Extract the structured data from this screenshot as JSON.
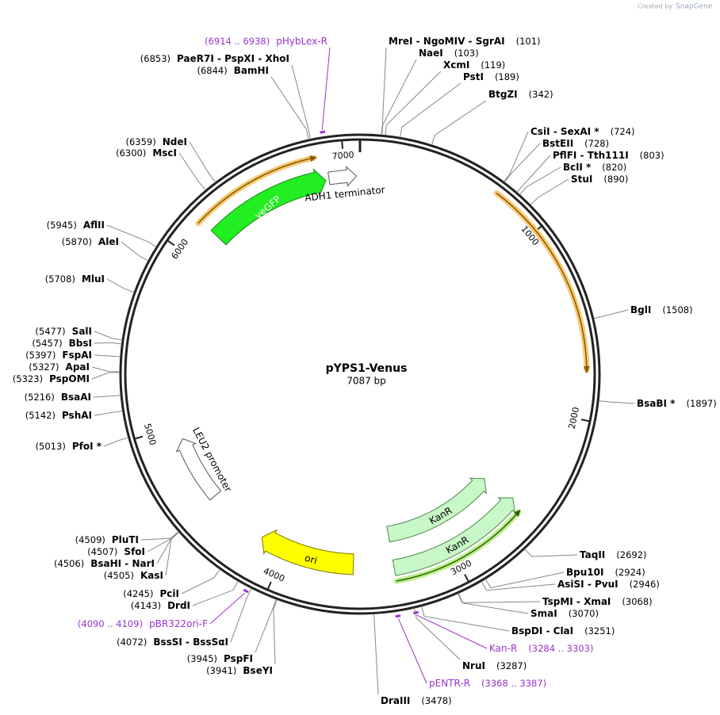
{
  "header": {
    "credit": "Created by",
    "brand": "SnapGene"
  },
  "map": {
    "name": "pYPS1-Venus",
    "length": "7087 bp"
  },
  "ticks": [
    "1000",
    "2000",
    "3000",
    "4000",
    "5000",
    "6000",
    "7000"
  ],
  "features": [
    {
      "label": "yeGFP"
    },
    {
      "label": "ADH1 terminator"
    },
    {
      "label": "LEU2 promoter"
    },
    {
      "label": "ori"
    },
    {
      "label": "KanR"
    },
    {
      "label": "KanR"
    }
  ],
  "sites": [
    {
      "name": "MreI  -  NgoMIV  -  SgrAI",
      "position": "(101)"
    },
    {
      "name": "NaeI",
      "position": "(103)"
    },
    {
      "name": "XcmI",
      "position": "(119)"
    },
    {
      "name": "PstI",
      "position": "(189)"
    },
    {
      "name": "BtgZI",
      "position": "(342)"
    },
    {
      "name": "CsiI  -  SexAI *",
      "position": "(724)"
    },
    {
      "name": "BstEII",
      "position": "(728)"
    },
    {
      "name": "PflFI  -  Tth111I",
      "position": "(803)"
    },
    {
      "name": "BclI *",
      "position": "(820)"
    },
    {
      "name": "StuI",
      "position": "(890)"
    },
    {
      "name": "BglI",
      "position": "(1508)"
    },
    {
      "name": "BsaBI *",
      "position": "(1897)"
    },
    {
      "name": "TaqII",
      "position": "(2692)"
    },
    {
      "name": "Bpu10I",
      "position": "(2924)"
    },
    {
      "name": "AsiSI  -  PvuI",
      "position": "(2946)"
    },
    {
      "name": "TspMI  -  XmaI",
      "position": "(3068)"
    },
    {
      "name": "SmaI",
      "position": "(3070)"
    },
    {
      "name": "BspDI  -  ClaI",
      "position": "(3251)"
    },
    {
      "name": "NruI",
      "position": "(3287)"
    },
    {
      "name": "DraIII",
      "position": "(3478)"
    },
    {
      "name": "PaeR7I  -  PspXI  -  XhoI",
      "position": "(6853)"
    },
    {
      "name": "BamHI",
      "position": "(6844)"
    },
    {
      "name": "NdeI",
      "position": "(6359)"
    },
    {
      "name": "MscI",
      "position": "(6300)"
    },
    {
      "name": "AflII",
      "position": "(5945)"
    },
    {
      "name": "AleI",
      "position": "(5870)"
    },
    {
      "name": "MluI",
      "position": "(5708)"
    },
    {
      "name": "SalI",
      "position": "(5477)"
    },
    {
      "name": "BbsI",
      "position": "(5457)"
    },
    {
      "name": "FspAI",
      "position": "(5397)"
    },
    {
      "name": "ApaI",
      "position": "(5327)"
    },
    {
      "name": "PspOMI",
      "position": "(5323)"
    },
    {
      "name": "BsaAI",
      "position": "(5216)"
    },
    {
      "name": "PshAI",
      "position": "(5142)"
    },
    {
      "name": "PfoI *",
      "position": "(5013)"
    },
    {
      "name": "PluTI",
      "position": "(4509)"
    },
    {
      "name": "SfoI",
      "position": "(4507)"
    },
    {
      "name": "BsaHI  -  NarI",
      "position": "(4506)"
    },
    {
      "name": "KasI",
      "position": "(4505)"
    },
    {
      "name": "PciI",
      "position": "(4245)"
    },
    {
      "name": "DrdI",
      "position": "(4143)"
    },
    {
      "name": "BssSI  -  BssSαI",
      "position": "(4072)"
    },
    {
      "name": "PspFI",
      "position": "(3945)"
    },
    {
      "name": "BseYI",
      "position": "(3941)"
    }
  ],
  "primers": [
    {
      "name": "pHybLex-R",
      "range": "(6914 .. 6938)"
    },
    {
      "name": "pBR322ori-F",
      "range": "(4090 .. 4109)"
    },
    {
      "name": "Kan-R",
      "range": "(3284 .. 3303)"
    },
    {
      "name": "pENTR-R",
      "range": "(3368 .. 3387)"
    }
  ]
}
